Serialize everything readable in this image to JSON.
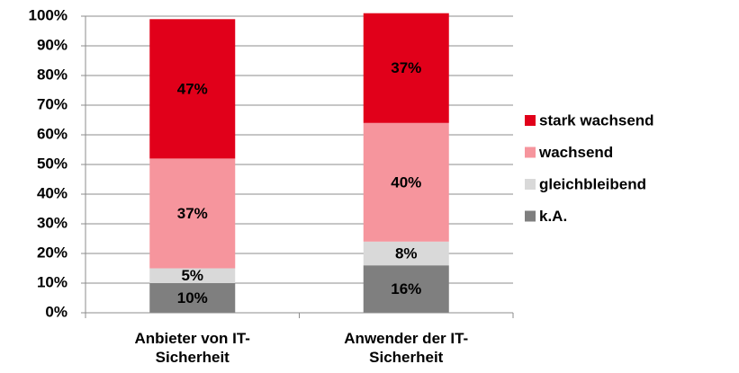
{
  "chart_data": {
    "type": "stacked_bar",
    "categories": [
      "Anbieter von IT-Sicherheit",
      "Anwender der IT-Sicherheit"
    ],
    "series": [
      {
        "name": "k.A.",
        "color": "#7f7f7f",
        "values": [
          10,
          16
        ],
        "value_labels": [
          "10%",
          "16%"
        ]
      },
      {
        "name": "gleichbleibend",
        "color": "#d9d9d9",
        "values": [
          5,
          8
        ],
        "value_labels": [
          "5%",
          "8%"
        ]
      },
      {
        "name": "wachsend",
        "color": "#f6959d",
        "values": [
          37,
          40
        ],
        "value_labels": [
          "37%",
          "40%"
        ]
      },
      {
        "name": "stark wachsend",
        "color": "#e1001a",
        "values": [
          47,
          37
        ],
        "value_labels": [
          "47%",
          "37%"
        ]
      }
    ],
    "ylim": [
      0,
      100
    ],
    "yticks": [
      {
        "value": 0,
        "label": "0%"
      },
      {
        "value": 10,
        "label": "10%"
      },
      {
        "value": 20,
        "label": "20%"
      },
      {
        "value": 30,
        "label": "30%"
      },
      {
        "value": 40,
        "label": "40%"
      },
      {
        "value": 50,
        "label": "50%"
      },
      {
        "value": 60,
        "label": "60%"
      },
      {
        "value": 70,
        "label": "70%"
      },
      {
        "value": 80,
        "label": "80%"
      },
      {
        "value": 90,
        "label": "90%"
      },
      {
        "value": 100,
        "label": "100%"
      }
    ],
    "grid": true,
    "legend": "right"
  }
}
